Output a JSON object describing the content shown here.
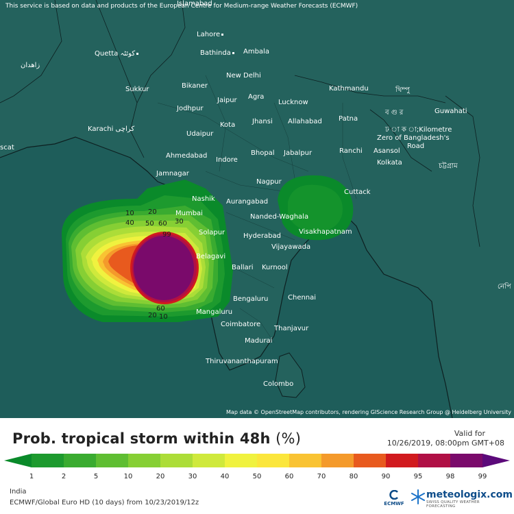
{
  "disclaimer": "This service is based on data and products of the European Centre for Medium-range Weather Forecasts (ECMWF)",
  "attribution": "Map data © OpenStreetMap contributors, rendering GIScience Research Group @ Heidelberg University",
  "cities": {
    "islamabad": "Islamabad",
    "lahore": "Lahore",
    "quetta": "Quetta کوئٹہ",
    "zahedan": "زاهدان",
    "bathinda": "Bathinda",
    "ambala": "Ambala",
    "new_delhi": "New Delhi",
    "sukkur": "Sukkur",
    "bikaner": "Bikaner",
    "jaipur": "Jaipur",
    "agra": "Agra",
    "lucknow": "Lucknow",
    "kathmandu": "Kathmandu",
    "thimphu": "থিম্পু",
    "jodhpur": "Jodhpur",
    "kota": "Kota",
    "jhansi": "Jhansi",
    "allahabad": "Allahabad",
    "patna": "Patna",
    "bogra": "ব গু র",
    "guwahati": "Guwahati",
    "karachi": "Karachi کراچی",
    "udaipur": "Udaipur",
    "dhaka": "ঢ া ক া;Kilometre",
    "zero_bangladesh": "Zero of Bangladesh's",
    "road": "Road",
    "muscat": "scat",
    "ahmedabad": "Ahmedabad",
    "indore": "Indore",
    "bhopal": "Bhopal",
    "jabalpur": "Jabalpur",
    "ranchi": "Ranchi",
    "asansol": "Asansol",
    "kolkata": "Kolkata",
    "chittagong": "চট্টগ্রাম",
    "jamnagar": "Jamnagar",
    "nagpur": "Nagpur",
    "nashik": "Nashik",
    "aurangabad": "Aurangabad",
    "cuttack": "Cuttack",
    "mumbai": "Mumbai",
    "nanded": "Nanded-Waghala",
    "visakhapatnam": "Visakhapatnam",
    "solapur": "Solapur",
    "hyderabad": "Hyderabad",
    "vijayawada": "Vijayawada",
    "belagavi": "Belagavi",
    "ballari": "Ballari",
    "kurnool": "Kurnool",
    "bengaluru": "Bengaluru",
    "chennai": "Chennai",
    "mangaluru": "Mangaluru",
    "coimbatore": "Coimbatore",
    "thanjavur": "Thanjavur",
    "madurai": "Madurai",
    "thiruvananthapuram": "Thiruvananthapuram",
    "colombo": "Colombo",
    "naypyidaw": "নেপি"
  },
  "contour_labels": {
    "c10a": "10",
    "c20a": "20",
    "c40": "40",
    "c50": "50",
    "c60a": "60",
    "c30": "30",
    "c99": "99",
    "c60b": "60",
    "c20b": "20",
    "c10b": "10"
  },
  "legend": {
    "title": "Prob. tropical storm within 48h",
    "unit": "(%)",
    "valid_label": "Valid for",
    "valid_time": "10/26/2019, 08:00pm GMT+08",
    "ticks": [
      "1",
      "2",
      "5",
      "10",
      "20",
      "30",
      "40",
      "50",
      "60",
      "70",
      "80",
      "90",
      "95",
      "98",
      "99"
    ],
    "colors": [
      "#0a8a2a",
      "#1d9a2e",
      "#3aab30",
      "#5fbe32",
      "#86cf34",
      "#acdd38",
      "#cfe93c",
      "#f0f23f",
      "#fbe63c",
      "#f9c333",
      "#f49a2b",
      "#e85a1e",
      "#d11a1e",
      "#b01045",
      "#7a0a6b",
      "#5c0a7a"
    ]
  },
  "footer": {
    "region": "India",
    "model": "ECMWF/Global Euro HD (10 days) from 10/23/2019/12z",
    "ecmwf": "ECMWF",
    "brand": "meteologix.com",
    "tagline": "SWISS QUALITY WEATHER FORECASTING"
  },
  "map_colors": {
    "sea": "#1e5d5a",
    "land": "#235f5a"
  }
}
